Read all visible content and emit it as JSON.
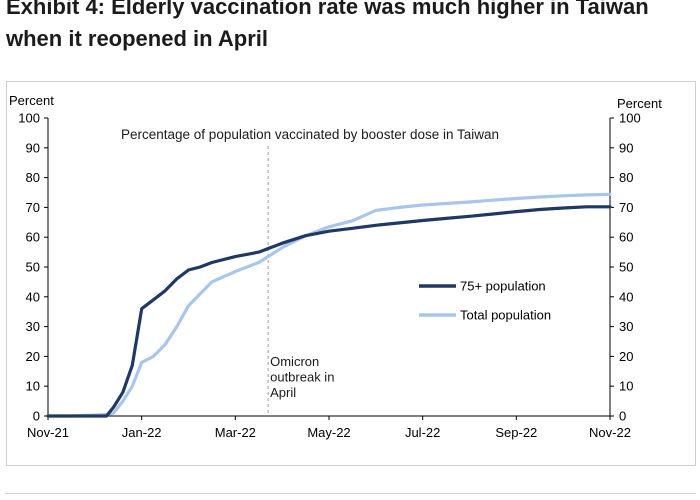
{
  "title_lines": [
    "Exhibit 4: Elderly vaccination rate was much higher in Taiwan",
    "when it reopened in April"
  ],
  "chart_data": {
    "type": "line",
    "title": "Percentage of population vaccinated by booster dose in Taiwan",
    "ylabel_left": "Percent",
    "ylabel_right": "Percent",
    "ylim": [
      0,
      100
    ],
    "yticks": [
      "0",
      "10",
      "20",
      "30",
      "40",
      "50",
      "60",
      "70",
      "80",
      "90",
      "100"
    ],
    "xlim": [
      0,
      12
    ],
    "xticks": [
      {
        "label": "Nov-21",
        "x": 0
      },
      {
        "label": "Jan-22",
        "x": 2
      },
      {
        "label": "Mar-22",
        "x": 4
      },
      {
        "label": "May-22",
        "x": 6
      },
      {
        "label": "Jul-22",
        "x": 8
      },
      {
        "label": "Sep-22",
        "x": 10
      },
      {
        "label": "Nov-22",
        "x": 12
      }
    ],
    "series": [
      {
        "name": "75+ population",
        "color": "#1f3864",
        "points": [
          [
            0,
            0
          ],
          [
            0.5,
            0
          ],
          [
            1.0,
            0
          ],
          [
            1.25,
            0
          ],
          [
            1.4,
            3
          ],
          [
            1.6,
            8
          ],
          [
            1.8,
            17
          ],
          [
            2.0,
            36
          ],
          [
            2.25,
            39
          ],
          [
            2.5,
            42
          ],
          [
            2.75,
            46
          ],
          [
            3.0,
            49
          ],
          [
            3.25,
            50
          ],
          [
            3.5,
            51.5
          ],
          [
            4.0,
            53.5
          ],
          [
            4.5,
            55
          ],
          [
            5.0,
            58
          ],
          [
            5.5,
            60.5
          ],
          [
            6.0,
            62
          ],
          [
            6.5,
            63
          ],
          [
            7.0,
            64
          ],
          [
            7.5,
            64.8
          ],
          [
            8.0,
            65.6
          ],
          [
            8.5,
            66.3
          ],
          [
            9.0,
            67
          ],
          [
            9.5,
            67.8
          ],
          [
            10.0,
            68.6
          ],
          [
            10.5,
            69.3
          ],
          [
            11.0,
            69.8
          ],
          [
            11.5,
            70.2
          ],
          [
            12.0,
            70.2
          ]
        ]
      },
      {
        "name": "Total population",
        "color": "#a9c6ea",
        "points": [
          [
            0,
            0
          ],
          [
            0.5,
            0
          ],
          [
            1.0,
            0.3
          ],
          [
            1.25,
            0.5
          ],
          [
            1.4,
            1
          ],
          [
            1.6,
            5
          ],
          [
            1.8,
            10
          ],
          [
            2.0,
            18
          ],
          [
            2.25,
            20
          ],
          [
            2.5,
            24
          ],
          [
            2.75,
            30
          ],
          [
            3.0,
            37
          ],
          [
            3.25,
            41
          ],
          [
            3.5,
            45
          ],
          [
            4.0,
            48.5
          ],
          [
            4.5,
            51.5
          ],
          [
            5.0,
            56.5
          ],
          [
            5.5,
            60.5
          ],
          [
            6.0,
            63.5
          ],
          [
            6.5,
            65.5
          ],
          [
            7.0,
            69
          ],
          [
            7.5,
            70
          ],
          [
            8.0,
            70.8
          ],
          [
            8.5,
            71.3
          ],
          [
            9.0,
            71.8
          ],
          [
            9.5,
            72.4
          ],
          [
            10.0,
            73
          ],
          [
            10.5,
            73.5
          ],
          [
            11.0,
            73.9
          ],
          [
            11.5,
            74.2
          ],
          [
            12.0,
            74.4
          ]
        ]
      }
    ],
    "annotations": [
      {
        "lines": [
          "Omicron",
          "outbreak in",
          "April"
        ],
        "x": 4.7
      }
    ],
    "vline_x": 4.7
  }
}
